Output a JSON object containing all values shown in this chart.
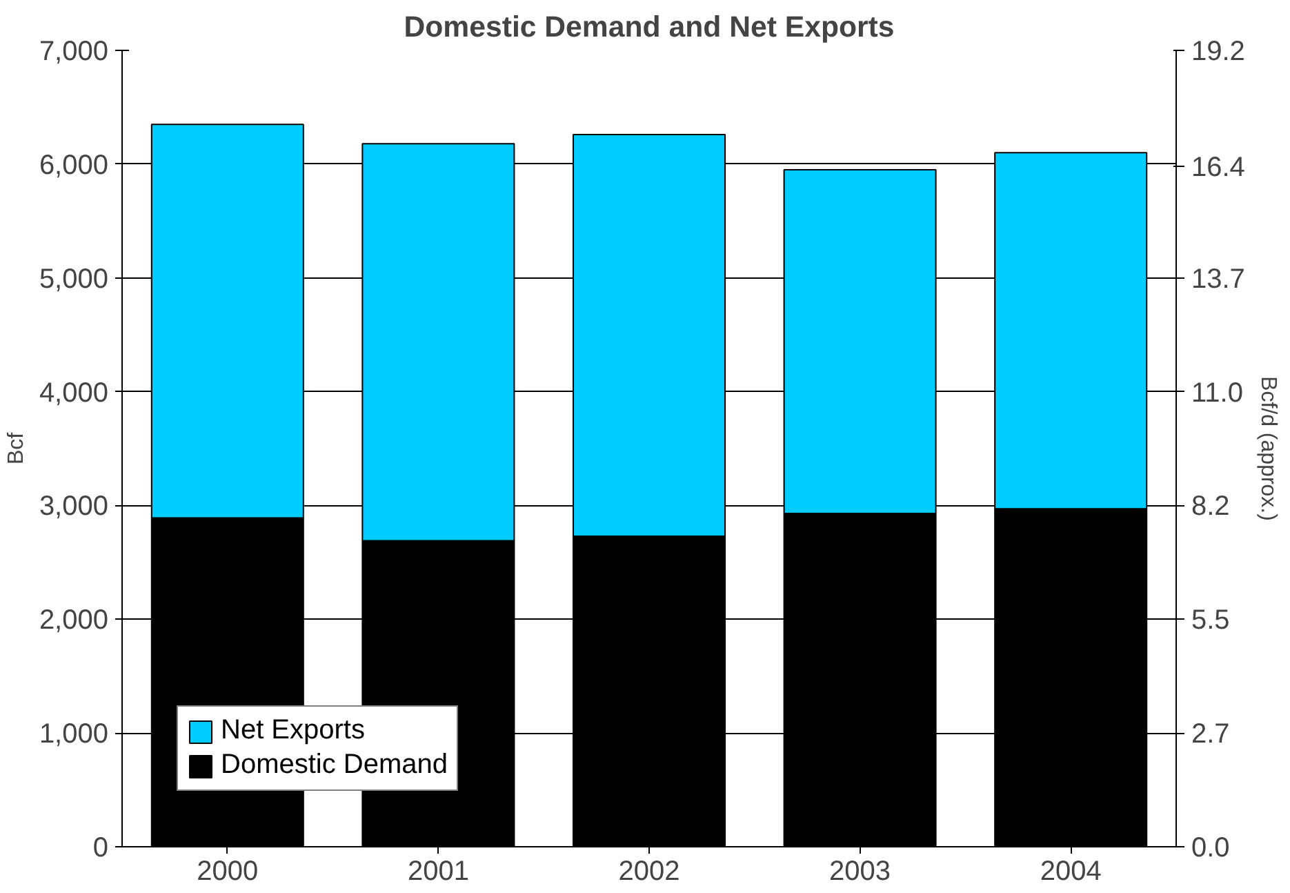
{
  "chart_data": {
    "type": "bar",
    "title": "Domestic Demand and Net Exports",
    "ylabel": "Bcf",
    "y2label": "Bcf/d (approx.)",
    "categories": [
      "2000",
      "2001",
      "2002",
      "2003",
      "2004"
    ],
    "stacked": true,
    "series": [
      {
        "name": "Domestic Demand",
        "color": "#000000",
        "values": [
          2890,
          2690,
          2730,
          2930,
          2970
        ]
      },
      {
        "name": "Net Exports",
        "color": "#00ccff",
        "values": [
          3460,
          3490,
          3530,
          3020,
          3130
        ]
      }
    ],
    "ylim": [
      0,
      7000
    ],
    "yticks": [
      0,
      {
        "value": 1000,
        "label": "1,000"
      },
      {
        "value": 2000,
        "label": "2,000"
      },
      {
        "value": 3000,
        "label": "3,000"
      },
      {
        "value": 4000,
        "label": "4,000"
      },
      {
        "value": 5000,
        "label": "5,000"
      },
      {
        "value": 6000,
        "label": "6,000"
      },
      {
        "value": 7000,
        "label": "7,000"
      }
    ],
    "y2lim": [
      0,
      19.2
    ],
    "y2ticks": [
      {
        "value": 0,
        "label": "0.0"
      },
      {
        "value": 2.74,
        "label": "2.7"
      },
      {
        "value": 5.49,
        "label": "5.5"
      },
      {
        "value": 8.23,
        "label": "8.2"
      },
      {
        "value": 10.97,
        "label": "11.0"
      },
      {
        "value": 13.71,
        "label": "13.7"
      },
      16.4,
      19.2
    ],
    "grid": "y",
    "legend": "bottom left"
  }
}
